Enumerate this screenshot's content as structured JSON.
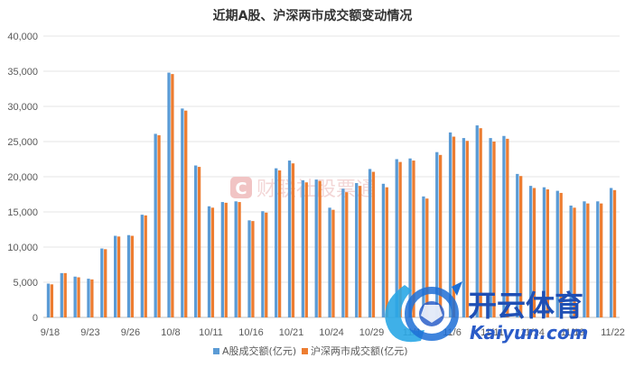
{
  "chart_data": {
    "type": "bar",
    "title": "近期A股、沪深两市成交额变动情况",
    "ylim": [
      0,
      40000
    ],
    "yticks": [
      "0",
      "5,000",
      "10,000",
      "15,000",
      "20,000",
      "25,000",
      "30,000",
      "35,000",
      "40,000"
    ],
    "xtick_labels": [
      "9/18",
      "9/23",
      "9/26",
      "10/8",
      "10/11",
      "10/16",
      "10/21",
      "10/24",
      "10/29",
      "11/1",
      "11/6",
      "11/11",
      "11/14",
      "11/19",
      "11/22"
    ],
    "categories": [
      "9/18",
      "9/19",
      "9/20",
      "9/23",
      "9/24",
      "9/25",
      "9/26",
      "9/27",
      "9/30",
      "10/8",
      "10/9",
      "10/10",
      "10/11",
      "10/14",
      "10/15",
      "10/16",
      "10/17",
      "10/18",
      "10/21",
      "10/22",
      "10/23",
      "10/24",
      "10/25",
      "10/28",
      "10/29",
      "10/30",
      "10/31",
      "11/1",
      "11/4",
      "11/5",
      "11/6",
      "11/7",
      "11/8",
      "11/11",
      "11/12",
      "11/13",
      "11/14",
      "11/15",
      "11/18",
      "11/19",
      "11/20",
      "11/21",
      "11/22"
    ],
    "series": [
      {
        "name": "A股成交额(亿元)",
        "color": "#5b9bd5",
        "values": [
          4800,
          6300,
          5800,
          5500,
          9800,
          11600,
          11700,
          14600,
          26100,
          34800,
          29700,
          21600,
          15800,
          16400,
          16500,
          13800,
          15100,
          21200,
          22300,
          19500,
          19600,
          15600,
          18300,
          19100,
          21100,
          19000,
          22500,
          22600,
          17200,
          23500,
          26300,
          25500,
          27300,
          25500,
          25800,
          20400,
          18700,
          18500,
          18000,
          15900,
          16500,
          16500,
          18400
        ]
      },
      {
        "name": "沪深两市成交额(亿元)",
        "color": "#ed7d31",
        "values": [
          4700,
          6300,
          5700,
          5400,
          9700,
          11500,
          11600,
          14500,
          25900,
          34600,
          29400,
          21400,
          15600,
          16300,
          16400,
          13700,
          14900,
          20900,
          21900,
          19200,
          19400,
          15300,
          17800,
          18700,
          20700,
          18500,
          22100,
          22300,
          16900,
          23100,
          25700,
          25100,
          26900,
          25000,
          25400,
          20100,
          18400,
          18200,
          17700,
          15600,
          16200,
          16200,
          18100
        ]
      }
    ]
  },
  "watermark": {
    "text": "财联社股票通",
    "badge": "C",
    "color": "#e7a5a5"
  },
  "logo": {
    "chinese": "开云体育",
    "english": "Kaiyun.com"
  }
}
